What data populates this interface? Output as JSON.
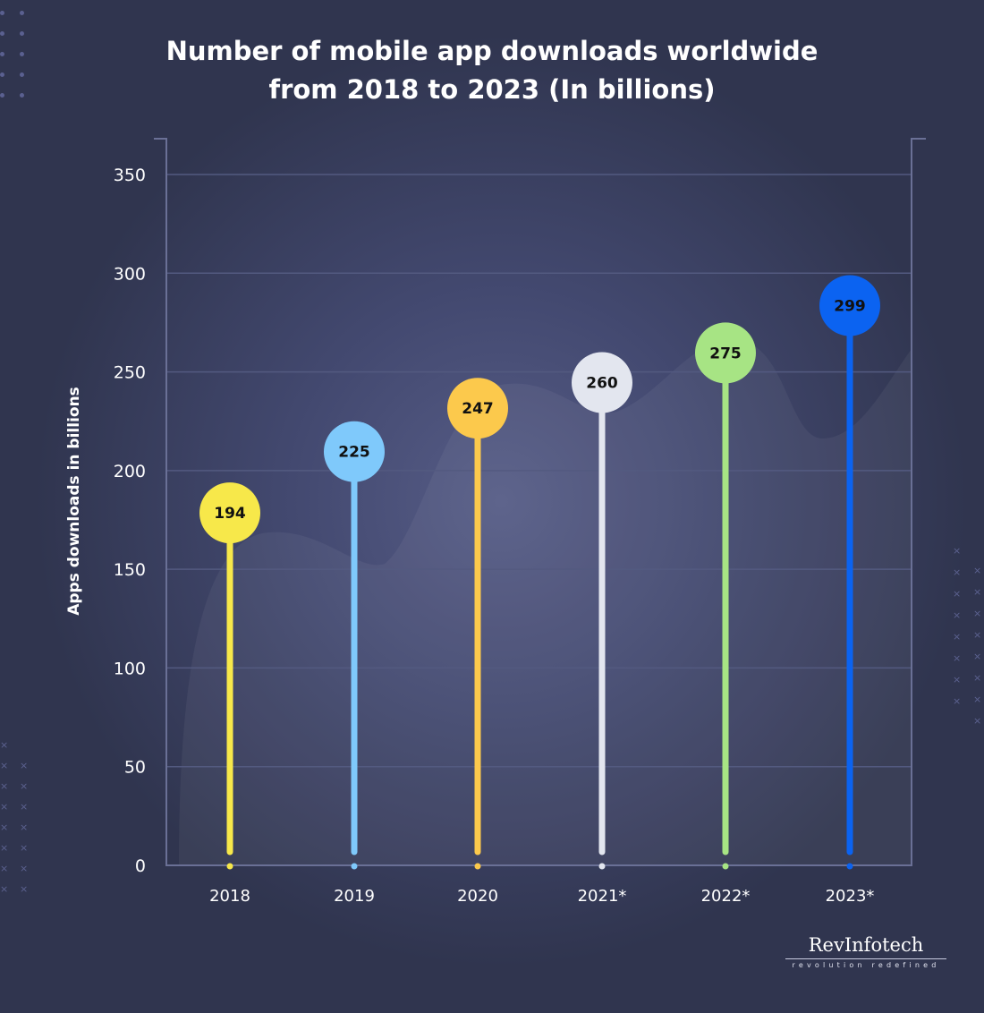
{
  "chart_data": {
    "type": "bar",
    "style": "lollipop",
    "title": "Number of mobile app downloads worldwide from 2018 to 2023 (In billions)",
    "title_lines": [
      "Number of mobile app downloads worldwide",
      "from 2018 to 2023 (In billions)"
    ],
    "xlabel": "",
    "ylabel": "Apps downloads in billions",
    "categories": [
      "2018",
      "2019",
      "2020",
      "2021*",
      "2022*",
      "2023*"
    ],
    "values": [
      194,
      225,
      247,
      260,
      275,
      299
    ],
    "data_labels": [
      "194",
      "225",
      "247",
      "260",
      "275",
      "299"
    ],
    "colors": [
      "#f7e84a",
      "#7fc9fb",
      "#fcc94c",
      "#e3e6ef",
      "#a7e484",
      "#0b63f1"
    ],
    "ylim": [
      0,
      350
    ],
    "yticks": [
      "0",
      "50",
      "100",
      "150",
      "200",
      "250",
      "300",
      "350"
    ],
    "grid": true,
    "legend": "none"
  },
  "brand": {
    "name": "RevInfotech",
    "tagline": "revolution  redefined"
  },
  "background": "#30354f"
}
